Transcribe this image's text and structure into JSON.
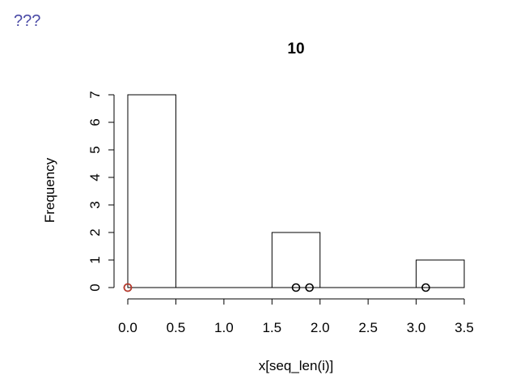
{
  "page": {
    "header": "???"
  },
  "chart_data": {
    "type": "bar",
    "title": "10",
    "xlabel": "x[seq_len(i)]",
    "ylabel": "Frequency",
    "xlim": [
      0,
      3.5
    ],
    "ylim": [
      0,
      7
    ],
    "x_ticks": [
      "0.0",
      "0.5",
      "1.0",
      "1.5",
      "2.0",
      "2.5",
      "3.0",
      "3.5"
    ],
    "y_ticks": [
      "0",
      "1",
      "2",
      "3",
      "4",
      "5",
      "6",
      "7"
    ],
    "grid": false,
    "bins": [
      {
        "from": 0.0,
        "to": 0.5,
        "count": 7
      },
      {
        "from": 0.5,
        "to": 1.0,
        "count": 0
      },
      {
        "from": 1.0,
        "to": 1.5,
        "count": 0
      },
      {
        "from": 1.5,
        "to": 2.0,
        "count": 2
      },
      {
        "from": 2.0,
        "to": 2.5,
        "count": 0
      },
      {
        "from": 2.5,
        "to": 3.0,
        "count": 0
      },
      {
        "from": 3.0,
        "to": 3.5,
        "count": 1
      }
    ],
    "points": [
      {
        "x": 0.0,
        "color": "#000000"
      },
      {
        "x": 0.0,
        "color": "#c0392b"
      },
      {
        "x": 1.75,
        "color": "#000000"
      },
      {
        "x": 1.89,
        "color": "#000000"
      },
      {
        "x": 3.1,
        "color": "#000000"
      }
    ],
    "colors": {
      "bar_fill": "#ffffff",
      "bar_stroke": "#000000",
      "highlight": "#c0392b"
    }
  }
}
